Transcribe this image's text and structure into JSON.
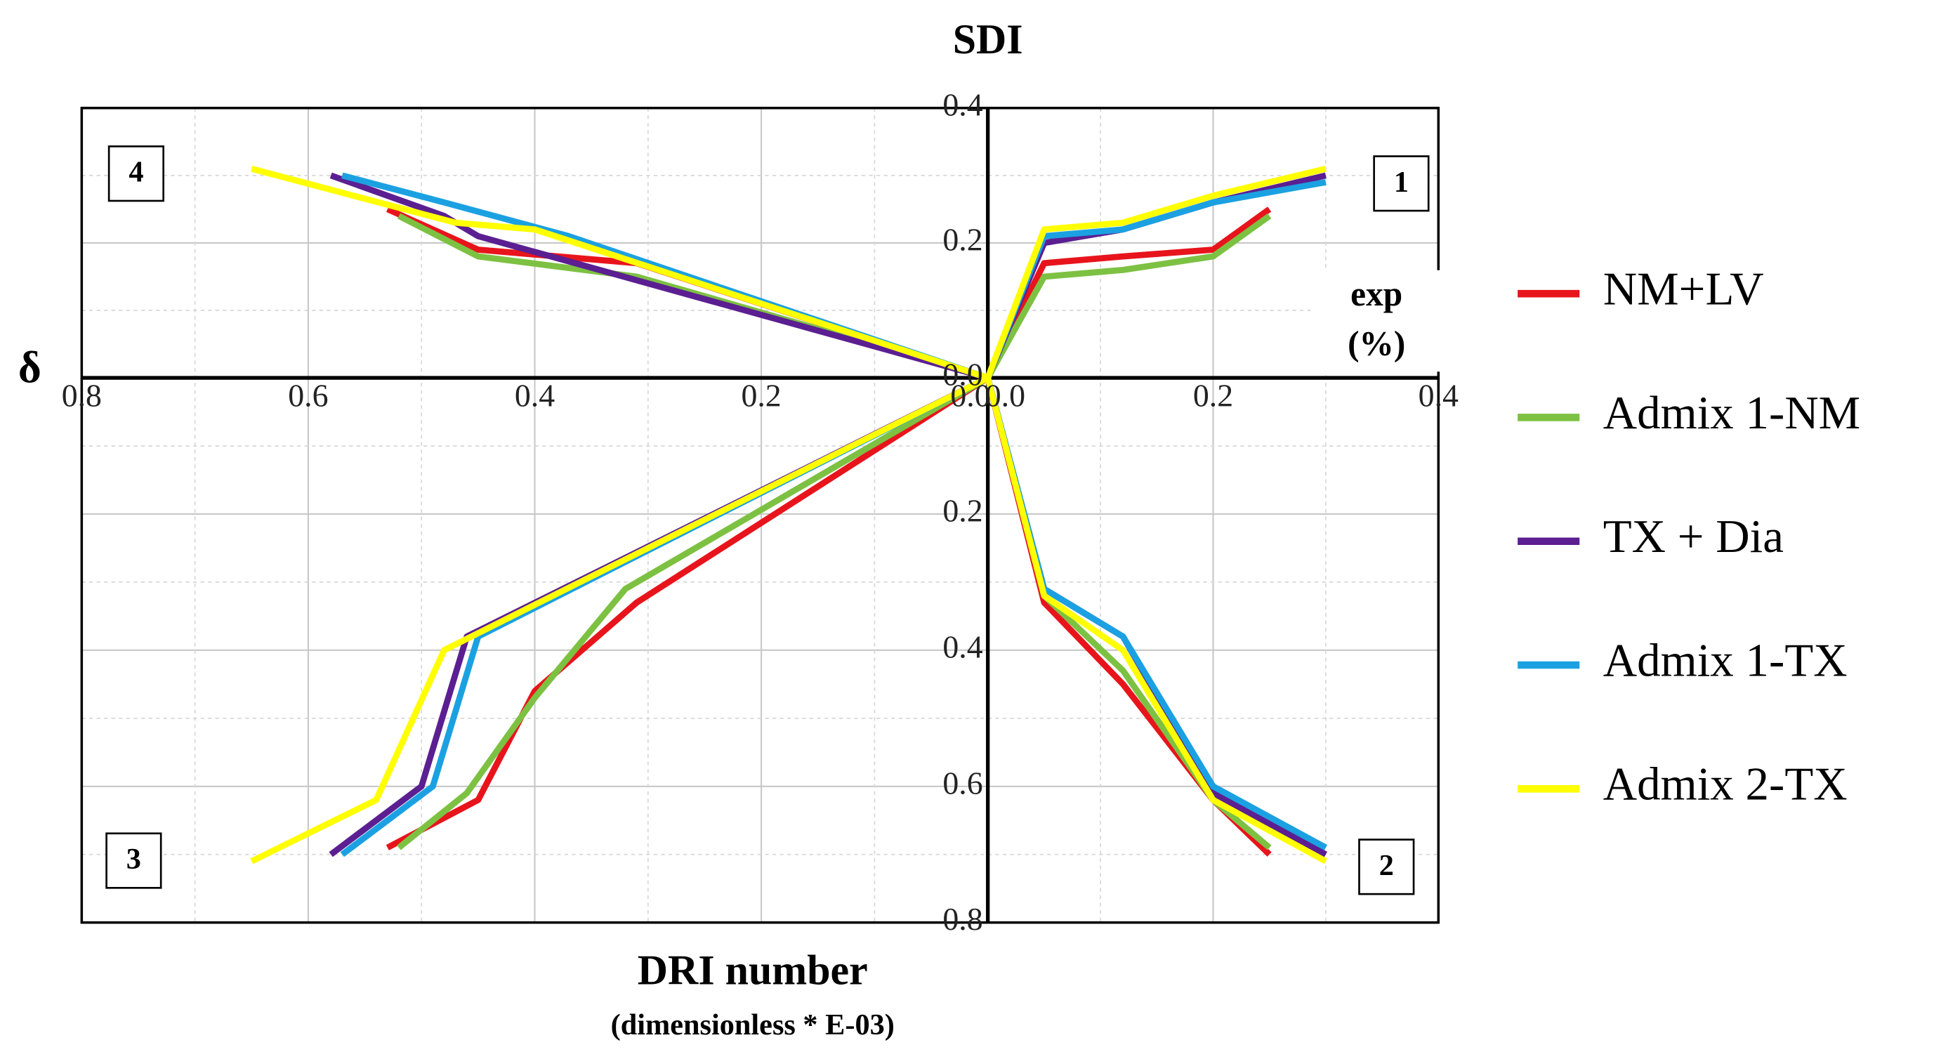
{
  "chart_data": {
    "type": "quadrant-line",
    "y_label_top": "SDI",
    "y_label_left": "δ",
    "x_label_right": [
      "exp",
      "(%)"
    ],
    "x_label_bottom": [
      "DRI number",
      "(dimensionless * E-03)"
    ],
    "grid": true,
    "legend": "right",
    "quadrants": [
      {
        "label": "1",
        "xlim": [
          0,
          0.4
        ],
        "ylim": [
          0,
          0.4
        ],
        "xticks": [
          {
            "value": 0,
            "label": "0.0"
          },
          0.2,
          0.4
        ],
        "yticks": [
          {
            "value": 0,
            "label": "0.0"
          },
          0.2,
          0.4
        ]
      },
      {
        "label": "2",
        "xlim": [
          0,
          0.4
        ],
        "ylim": [
          0.8,
          0
        ],
        "yticks": [
          0.2,
          0.4,
          0.6,
          0.8
        ]
      },
      {
        "label": "3",
        "xlim": [
          0.8,
          0
        ],
        "ylim": [
          0.8,
          0
        ]
      },
      {
        "label": "4",
        "xlim": [
          0.8,
          0
        ],
        "ylim": [
          0,
          0.4
        ],
        "xticks": [
          0.8,
          0.6,
          0.4,
          0.2,
          {
            "value": 0,
            "label": "0.0"
          }
        ]
      }
    ],
    "series": [
      {
        "name": "NM+LV",
        "color": "#e8141c",
        "data": [
          {
            "x": [
              0,
              0.05,
              0.12,
              0.2,
              0.25
            ],
            "values": [
              0,
              0.17,
              0.18,
              0.19,
              0.25
            ]
          },
          {
            "x": [
              0,
              0.05,
              0.12,
              0.2,
              0.25
            ],
            "values": [
              0,
              0.33,
              0.45,
              0.62,
              0.7
            ]
          },
          {
            "x": [
              0,
              0.31,
              0.4,
              0.45,
              0.53
            ],
            "values": [
              0,
              0.33,
              0.46,
              0.62,
              0.69
            ]
          },
          {
            "x": [
              0,
              0.31,
              0.45,
              0.53
            ],
            "values": [
              0,
              0.17,
              0.19,
              0.25
            ]
          }
        ]
      },
      {
        "name": "Admix 1-NM",
        "color": "#7dc142",
        "data": [
          {
            "x": [
              0,
              0.05,
              0.12,
              0.2,
              0.25
            ],
            "values": [
              0,
              0.15,
              0.16,
              0.18,
              0.24
            ]
          },
          {
            "x": [
              0,
              0.05,
              0.12,
              0.2,
              0.25
            ],
            "values": [
              0,
              0.32,
              0.43,
              0.62,
              0.69
            ]
          },
          {
            "x": [
              0,
              0.32,
              0.4,
              0.46,
              0.52
            ],
            "values": [
              0,
              0.31,
              0.47,
              0.61,
              0.69
            ]
          },
          {
            "x": [
              0,
              0.31,
              0.45,
              0.52
            ],
            "values": [
              0,
              0.15,
              0.18,
              0.24
            ]
          }
        ]
      },
      {
        "name": "TX + Dia",
        "color": "#5b1f91",
        "data": [
          {
            "x": [
              0,
              0.05,
              0.12,
              0.2,
              0.3
            ],
            "values": [
              0,
              0.2,
              0.22,
              0.26,
              0.3
            ]
          },
          {
            "x": [
              0,
              0.05,
              0.12,
              0.2,
              0.3
            ],
            "values": [
              0,
              0.31,
              0.38,
              0.61,
              0.7
            ]
          },
          {
            "x": [
              0,
              0.46,
              0.5,
              0.58
            ],
            "values": [
              0,
              0.38,
              0.6,
              0.7
            ]
          },
          {
            "x": [
              0,
              0.45,
              0.48,
              0.58
            ],
            "values": [
              0,
              0.21,
              0.24,
              0.3
            ]
          }
        ]
      },
      {
        "name": "Admix 1-TX",
        "color": "#1ba1e2",
        "data": [
          {
            "x": [
              0,
              0.05,
              0.12,
              0.2,
              0.3
            ],
            "values": [
              0,
              0.21,
              0.22,
              0.26,
              0.29
            ]
          },
          {
            "x": [
              0,
              0.05,
              0.12,
              0.2,
              0.3
            ],
            "values": [
              0,
              0.31,
              0.38,
              0.6,
              0.69
            ]
          },
          {
            "x": [
              0,
              0.45,
              0.49,
              0.57
            ],
            "values": [
              0,
              0.38,
              0.6,
              0.7
            ]
          },
          {
            "x": [
              0,
              0.37,
              0.48,
              0.57
            ],
            "values": [
              0,
              0.21,
              0.26,
              0.3
            ]
          }
        ]
      },
      {
        "name": "Admix 2-TX",
        "color": "#ffff00",
        "data": [
          {
            "x": [
              0,
              0.05,
              0.12,
              0.2,
              0.3
            ],
            "values": [
              0,
              0.22,
              0.23,
              0.27,
              0.31
            ]
          },
          {
            "x": [
              0,
              0.05,
              0.12,
              0.2,
              0.3
            ],
            "values": [
              0,
              0.32,
              0.4,
              0.62,
              0.71
            ]
          },
          {
            "x": [
              0,
              0.48,
              0.54,
              0.65
            ],
            "values": [
              0,
              0.4,
              0.62,
              0.71
            ]
          },
          {
            "x": [
              0,
              0.4,
              0.47,
              0.65
            ],
            "values": [
              0,
              0.22,
              0.23,
              0.31
            ]
          }
        ]
      }
    ]
  }
}
